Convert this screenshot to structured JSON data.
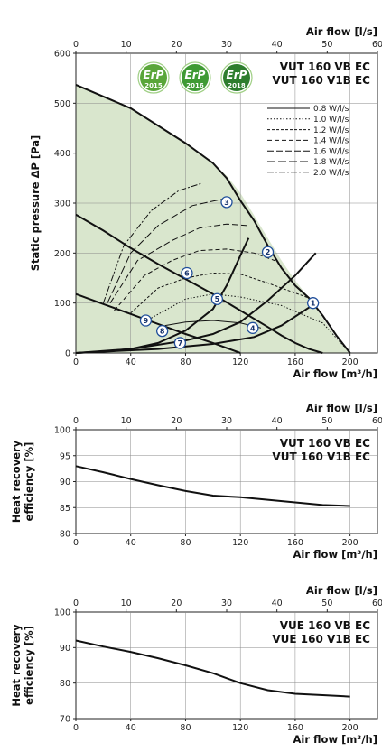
{
  "badges": {
    "label": "ErP",
    "years": [
      "2015",
      "2016",
      "2018"
    ],
    "colors": [
      "#5aa63a",
      "#3f9a34",
      "#2e7d2e"
    ]
  },
  "chart_data": [
    {
      "type": "line",
      "title_lines": [
        "VUT 160 VB EC",
        "VUT 160 V1B EC"
      ],
      "xlabel": "Air flow [m³/h]",
      "x2label": "Air flow [l/s]",
      "ylabel": "Static pressure ΔP [Pa]",
      "xlim": [
        0,
        220
      ],
      "ylim": [
        0,
        600
      ],
      "xticks": [
        0,
        40,
        80,
        120,
        160,
        200
      ],
      "yticks": [
        0,
        100,
        200,
        300,
        400,
        500,
        600
      ],
      "x2ticks": [
        0,
        10,
        20,
        30,
        40,
        50,
        60
      ],
      "fill_color": "#d9e6cd",
      "envelope": [
        [
          0,
          537
        ],
        [
          20,
          515
        ],
        [
          40,
          490
        ],
        [
          60,
          455
        ],
        [
          80,
          420
        ],
        [
          100,
          380
        ],
        [
          110,
          355
        ],
        [
          120,
          320
        ],
        [
          130,
          275
        ],
        [
          140,
          230
        ],
        [
          150,
          185
        ],
        [
          160,
          145
        ],
        [
          170,
          110
        ],
        [
          180,
          70
        ],
        [
          190,
          30
        ],
        [
          200,
          0
        ]
      ],
      "fan_curves": [
        {
          "id": 3,
          "points": [
            [
              0,
              537
            ],
            [
              40,
              490
            ],
            [
              80,
              420
            ],
            [
              100,
              380
            ],
            [
              110,
              350
            ],
            [
              120,
              305
            ],
            [
              130,
              265
            ],
            [
              140,
              215
            ],
            [
              150,
              170
            ],
            [
              160,
              135
            ],
            [
              170,
              110
            ],
            [
              180,
              75
            ],
            [
              190,
              35
            ],
            [
              200,
              0
            ]
          ]
        },
        {
          "id": 2,
          "points": [
            [
              0,
              277
            ],
            [
              20,
              245
            ],
            [
              40,
              210
            ],
            [
              60,
              178
            ],
            [
              80,
              148
            ],
            [
              100,
              118
            ],
            [
              120,
              85
            ],
            [
              140,
              52
            ],
            [
              150,
              35
            ],
            [
              160,
              20
            ],
            [
              170,
              8
            ],
            [
              180,
              0
            ]
          ]
        },
        {
          "id": 1,
          "points": [
            [
              0,
              118
            ],
            [
              20,
              98
            ],
            [
              40,
              78
            ],
            [
              60,
              58
            ],
            [
              80,
              38
            ],
            [
              100,
              20
            ],
            [
              110,
              10
            ],
            [
              120,
              0
            ]
          ]
        }
      ],
      "system_curves": [
        {
          "points": [
            [
              0,
              0
            ],
            [
              20,
              3
            ],
            [
              40,
              8
            ],
            [
              60,
              20
            ],
            [
              80,
              45
            ],
            [
              100,
              88
            ],
            [
              110,
              135
            ],
            [
              120,
              195
            ],
            [
              126,
              230
            ]
          ],
          "end_marker": 3
        },
        {
          "points": [
            [
              0,
              0
            ],
            [
              40,
              8
            ],
            [
              80,
              25
            ],
            [
              100,
              38
            ],
            [
              120,
              62
            ],
            [
              140,
              105
            ],
            [
              160,
              155
            ],
            [
              175,
              200
            ]
          ],
          "end_marker": 2
        },
        {
          "points": [
            [
              0,
              0
            ],
            [
              60,
              8
            ],
            [
              100,
              18
            ],
            [
              130,
              32
            ],
            [
              150,
              55
            ],
            [
              175,
              100
            ]
          ],
          "end_marker": 1
        }
      ],
      "operating_points": [
        {
          "id": 1,
          "x": 173,
          "y": 100
        },
        {
          "id": 2,
          "x": 140,
          "y": 202
        },
        {
          "id": 3,
          "x": 110,
          "y": 302
        },
        {
          "id": 4,
          "x": 129,
          "y": 50
        },
        {
          "id": 5,
          "x": 103,
          "y": 108
        },
        {
          "id": 6,
          "x": 81,
          "y": 160
        },
        {
          "id": 7,
          "x": 76,
          "y": 20
        },
        {
          "id": 8,
          "x": 63,
          "y": 44
        },
        {
          "id": 9,
          "x": 51,
          "y": 65
        }
      ],
      "legend": [
        "0.8 W/l/s",
        "1.0 W/l/s",
        "1.2 W/l/s",
        "1.4 W/l/s",
        "1.6 W/l/s",
        "1.8 W/l/s",
        "2.0 W/l/s"
      ],
      "sfp_series": [
        {
          "name": "0.8 W/l/s",
          "dash": "",
          "points": [
            [
              65,
              55
            ],
            [
              80,
              62
            ],
            [
              100,
              65
            ],
            [
              120,
              60
            ],
            [
              135,
              50
            ]
          ]
        },
        {
          "name": "1.0 W/l/s",
          "dash": "1.5 2",
          "points": [
            [
              55,
              70
            ],
            [
              80,
              108
            ],
            [
              100,
              118
            ],
            [
              120,
              112
            ],
            [
              150,
              95
            ],
            [
              180,
              60
            ],
            [
              200,
              0
            ]
          ]
        },
        {
          "name": "1.2 W/l/s",
          "dash": "3 2",
          "points": [
            [
              40,
              80
            ],
            [
              60,
              130
            ],
            [
              80,
              150
            ],
            [
              100,
              160
            ],
            [
              120,
              158
            ],
            [
              140,
              140
            ],
            [
              170,
              110
            ]
          ]
        },
        {
          "name": "1.4 W/l/s",
          "dash": "5 3",
          "points": [
            [
              28,
              85
            ],
            [
              50,
              155
            ],
            [
              70,
              185
            ],
            [
              90,
              205
            ],
            [
              110,
              208
            ],
            [
              130,
              200
            ],
            [
              145,
              185
            ]
          ]
        },
        {
          "name": "1.6 W/l/s",
          "dash": "7 3",
          "points": [
            [
              25,
              100
            ],
            [
              45,
              185
            ],
            [
              70,
              225
            ],
            [
              90,
              250
            ],
            [
              110,
              258
            ],
            [
              125,
              255
            ]
          ]
        },
        {
          "name": "1.8 W/l/s",
          "dash": "9 3",
          "points": [
            [
              23,
              100
            ],
            [
              40,
              200
            ],
            [
              60,
              255
            ],
            [
              85,
              295
            ],
            [
              110,
              310
            ]
          ]
        },
        {
          "name": "2.0 W/l/s",
          "dash": "7 2 2 2",
          "points": [
            [
              20,
              100
            ],
            [
              35,
              215
            ],
            [
              55,
              285
            ],
            [
              75,
              325
            ],
            [
              92,
              340
            ]
          ]
        }
      ]
    },
    {
      "type": "line",
      "title_lines": [
        "VUT 160 VB EC",
        "VUT 160 V1B EC"
      ],
      "xlabel": "Air flow [m³/h]",
      "x2label": "Air flow [l/s]",
      "ylabel_lines": [
        "Heat recovery",
        "efficiency [%]"
      ],
      "xlim": [
        0,
        220
      ],
      "ylim": [
        80,
        100
      ],
      "xticks": [
        0,
        40,
        80,
        120,
        160,
        200
      ],
      "yticks": [
        80,
        85,
        90,
        95,
        100
      ],
      "x2ticks": [
        0,
        10,
        20,
        30,
        40,
        50,
        60
      ],
      "series": [
        {
          "points": [
            [
              0,
              93
            ],
            [
              20,
              91.8
            ],
            [
              40,
              90.5
            ],
            [
              60,
              89.3
            ],
            [
              80,
              88.2
            ],
            [
              100,
              87.3
            ],
            [
              120,
              87
            ],
            [
              140,
              86.5
            ],
            [
              160,
              86
            ],
            [
              180,
              85.5
            ],
            [
              200,
              85.3
            ]
          ]
        }
      ]
    },
    {
      "type": "line",
      "title_lines": [
        "VUE 160 VB EC",
        "VUE 160 V1B EC"
      ],
      "xlabel": "Air flow [m³/h]",
      "x2label": "Air flow [l/s]",
      "ylabel_lines": [
        "Heat recovery",
        "efficiency [%]"
      ],
      "xlim": [
        0,
        220
      ],
      "ylim": [
        70,
        100
      ],
      "xticks": [
        0,
        40,
        80,
        120,
        160,
        200
      ],
      "yticks": [
        70,
        80,
        90,
        100
      ],
      "x2ticks": [
        0,
        10,
        20,
        30,
        40,
        50,
        60
      ],
      "series": [
        {
          "points": [
            [
              0,
              92
            ],
            [
              20,
              90.3
            ],
            [
              40,
              88.8
            ],
            [
              60,
              87
            ],
            [
              80,
              85
            ],
            [
              100,
              82.8
            ],
            [
              120,
              80
            ],
            [
              140,
              78
            ],
            [
              160,
              77
            ],
            [
              180,
              76.6
            ],
            [
              200,
              76.2
            ]
          ]
        }
      ]
    }
  ]
}
